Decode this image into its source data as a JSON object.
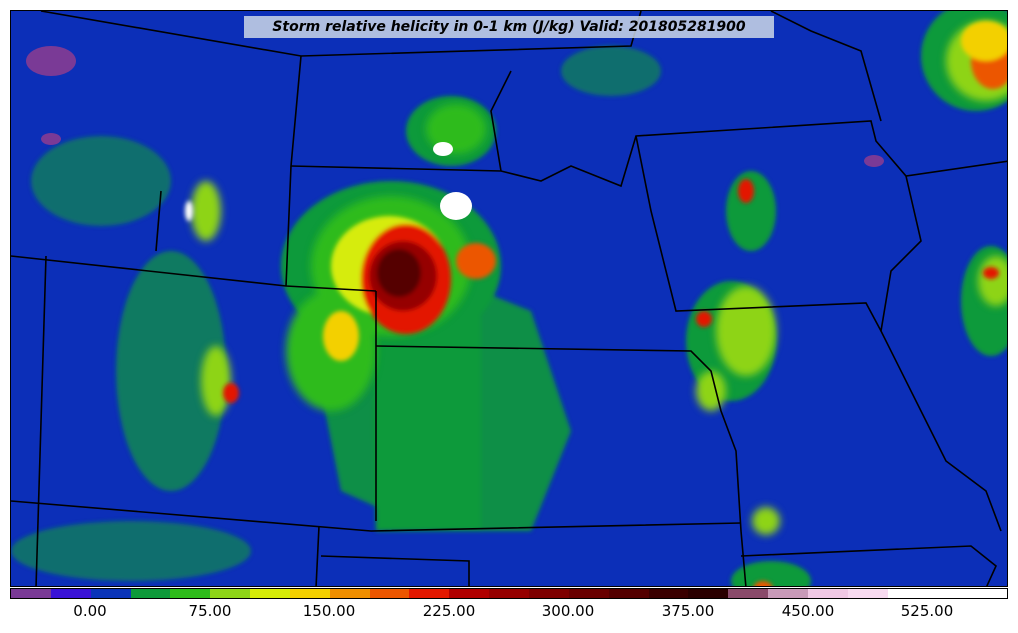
{
  "title": "Storm relative helicity in 0-1 km (J/kg) Valid: 201805281900",
  "colorbar": {
    "colors": [
      "#7a3a96",
      "#3a12d6",
      "#0a34b8",
      "#0d9a3a",
      "#2dbb1a",
      "#8ed418",
      "#d6ec08",
      "#f3d000",
      "#f08f00",
      "#ec5600",
      "#e31800",
      "#b00000",
      "#960000",
      "#7e0000",
      "#690000",
      "#540000",
      "#3a0000",
      "#2a0000",
      "#8a4a6a",
      "#c89ab8",
      "#f0c8e4",
      "#f8daf0",
      "#ffffff",
      "#ffffff",
      "#ffffff"
    ],
    "tick_labels": [
      "0.00",
      "75.00",
      "150.00",
      "225.00",
      "300.00",
      "375.00",
      "450.00",
      "525.00"
    ]
  }
}
